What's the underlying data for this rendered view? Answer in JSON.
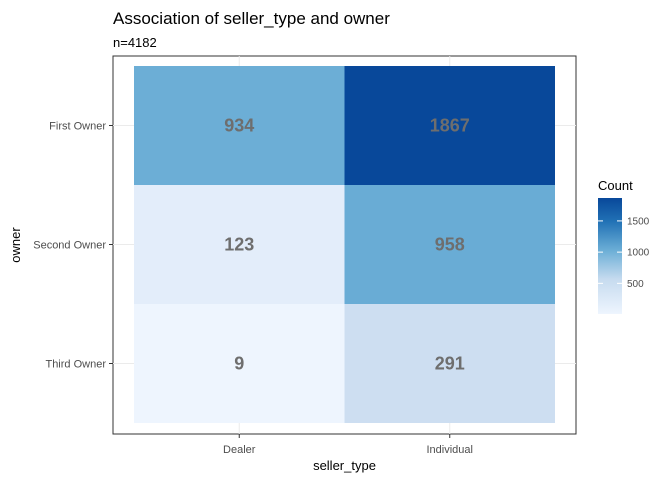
{
  "chart_data": {
    "type": "heatmap",
    "title": "Association of seller_type and owner",
    "subtitle": "n=4182",
    "xlabel": "seller_type",
    "ylabel": "owner",
    "x_categories": [
      "Dealer",
      "Individual"
    ],
    "y_categories": [
      "First Owner",
      "Second Owner",
      "Third Owner"
    ],
    "cells": [
      {
        "x": "Dealer",
        "y": "First Owner",
        "value": 934
      },
      {
        "x": "Individual",
        "y": "First Owner",
        "value": 1867
      },
      {
        "x": "Dealer",
        "y": "Second Owner",
        "value": 123
      },
      {
        "x": "Individual",
        "y": "Second Owner",
        "value": 958
      },
      {
        "x": "Dealer",
        "y": "Third Owner",
        "value": 9
      },
      {
        "x": "Individual",
        "y": "Third Owner",
        "value": 291
      }
    ],
    "legend": {
      "title": "Count",
      "ticks": [
        500,
        1000,
        1500
      ],
      "min": 9,
      "max": 1867,
      "low_color": "#eef5fe",
      "high_color": "#08489a",
      "placement": "right"
    },
    "grid": true
  }
}
